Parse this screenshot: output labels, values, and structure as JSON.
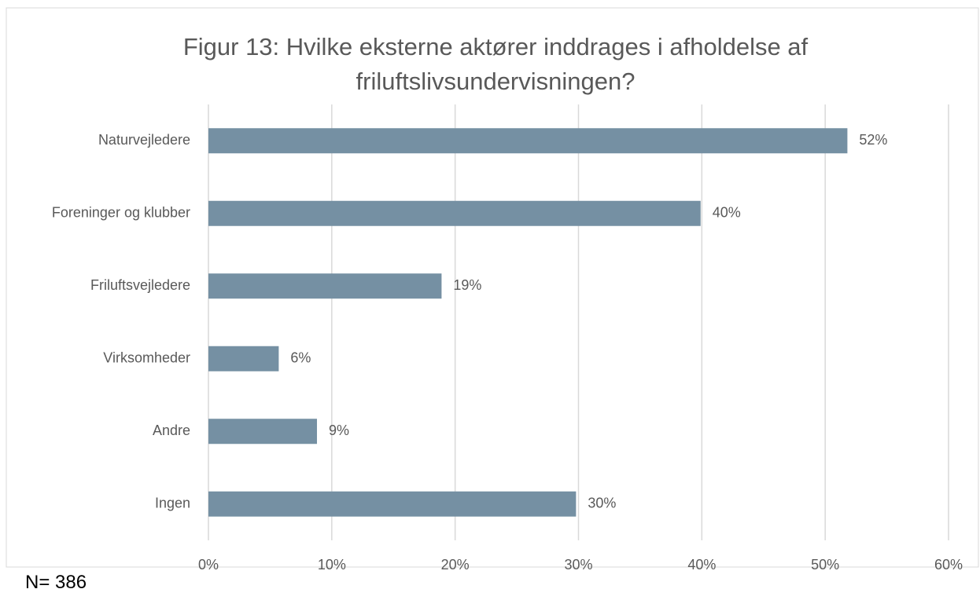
{
  "chart_data": {
    "type": "hbar",
    "title": "Figur 13: Hvilke eksterne aktører inddrages i afholdelse af friluftslivsundervisningen?",
    "categories": [
      "Naturvejledere",
      "Foreninger og klubber",
      "Friluftsvejledere",
      "Virksomheder",
      "Andre",
      "Ingen"
    ],
    "values": [
      51.8,
      39.9,
      18.9,
      5.7,
      8.8,
      29.8
    ],
    "value_labels": [
      "52%",
      "40%",
      "19%",
      "6%",
      "9%",
      "30%"
    ],
    "color": "#7590a3",
    "xlim": [
      0,
      60
    ],
    "xticks": [
      {
        "value": 0,
        "label": "0%"
      },
      {
        "value": 10,
        "label": "10%"
      },
      {
        "value": 20,
        "label": "20%"
      },
      {
        "value": 30,
        "label": "30%"
      },
      {
        "value": 40,
        "label": "40%"
      },
      {
        "value": 50,
        "label": "50%"
      },
      {
        "value": 60,
        "label": "60%"
      }
    ],
    "grid": true,
    "note": "N= 386"
  }
}
